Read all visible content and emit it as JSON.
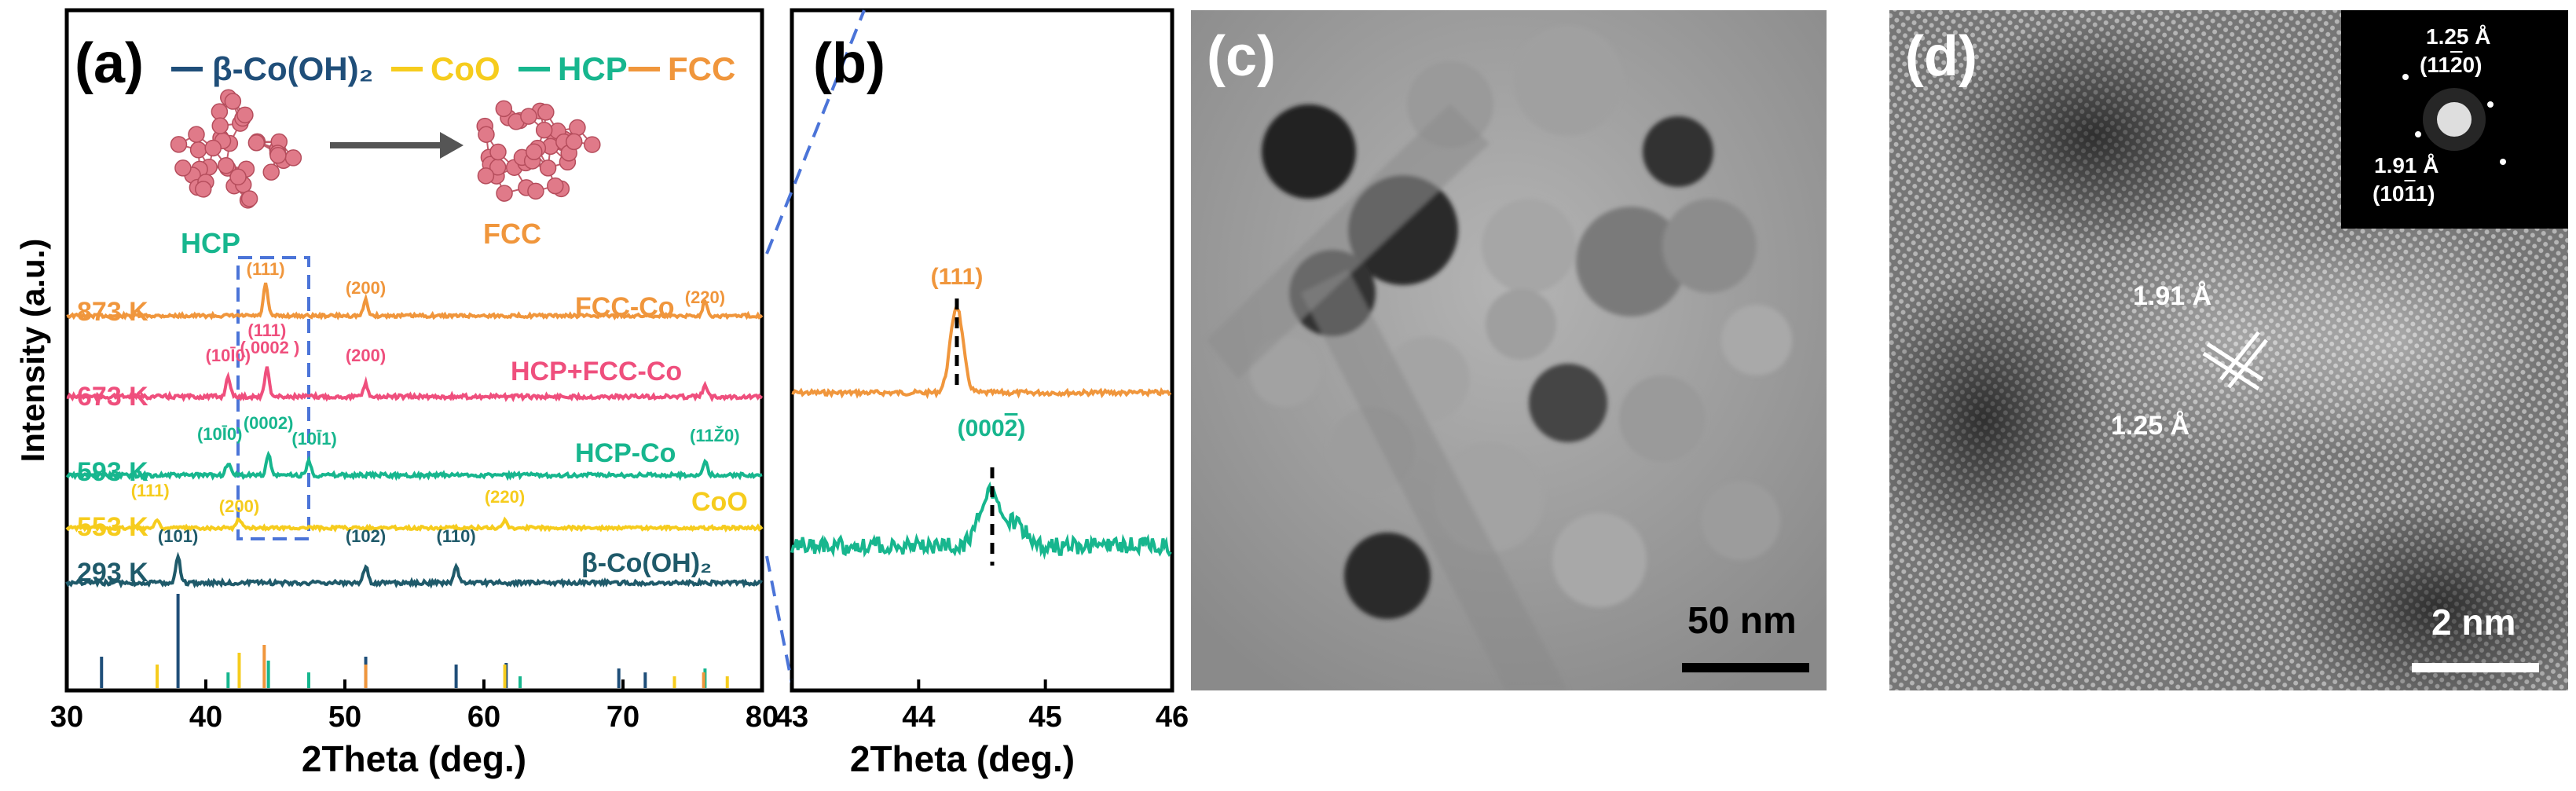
{
  "panel_a": {
    "label": "(a)",
    "legend": [
      "β-Co(OH)₂",
      "CoO",
      "HCP",
      "FCC"
    ],
    "schematic": {
      "left_label": "HCP",
      "right_label": "FCC"
    },
    "ylabel": "Intensity (a.u.)",
    "xlabel": "2Theta (deg.)",
    "xticks": [
      "30",
      "40",
      "50",
      "60",
      "70",
      "80"
    ],
    "traces": [
      {
        "temp": "873 K",
        "phase": "FCC-Co",
        "color": "#f0963c"
      },
      {
        "temp": "673 K",
        "phase": "HCP+FCC-Co",
        "color": "#ef4f7d"
      },
      {
        "temp": "593 K",
        "phase": "HCP-Co",
        "color": "#17b68e"
      },
      {
        "temp": "553 K",
        "phase": "CoO",
        "color": "#f6cc1d"
      },
      {
        "temp": "293 K",
        "phase": "β-Co(OH)₂",
        "color": "#1f5a6a"
      }
    ],
    "peak_labels": {
      "fcc_873": [
        "(111)",
        "(200)",
        "(220)"
      ],
      "t673": [
        "(10$\\bar{1}$0)",
        "(111)",
        "(0002)",
        "(200)"
      ],
      "hcp_593": [
        "(10$\\bar{1}$0)",
        "(000$\\bar{2}$)",
        "(10$\\bar{1}$1)",
        "(11$\\bar{2}$0)"
      ],
      "coo_553": [
        "(111)",
        "(200)",
        "(220)"
      ],
      "ohh_293": [
        "(101)",
        "(102)",
        "(110)"
      ]
    }
  },
  "panel_b": {
    "label": "(b)",
    "xlabel": "2Theta (deg.)",
    "xticks": [
      "43",
      "44",
      "45",
      "46"
    ],
    "peak_top": "(111)",
    "peak_bottom": "(000$\\bar{2}$)"
  },
  "panel_c": {
    "label": "(c)",
    "scale_bar": "50 nm"
  },
  "panel_d": {
    "label": "(d)",
    "scale_bar": "2 nm",
    "fft": {
      "d1": "1.25 Å",
      "hkl1": "(11$\\bar{2}$0)",
      "d2": "1.91 Å",
      "hkl2": "(10$\\bar{1}$1)"
    },
    "lattice_top": "1.91 Å",
    "lattice_bottom": "1.25 Å"
  },
  "chart_data": [
    {
      "type": "line",
      "panel": "(a)",
      "xlabel": "2Theta (deg.)",
      "ylabel": "Intensity (a.u.)",
      "xlim": [
        30,
        80
      ],
      "series": [
        {
          "name": "873 K",
          "peaks_2theta": [
            44.3,
            51.5,
            75.9
          ]
        },
        {
          "name": "673 K",
          "peaks_2theta": [
            41.6,
            44.4,
            51.5,
            75.9
          ]
        },
        {
          "name": "593 K",
          "peaks_2theta": [
            41.6,
            44.5,
            47.4,
            75.9
          ]
        },
        {
          "name": "553 K",
          "peaks_2theta": [
            36.5,
            42.4,
            61.5
          ]
        },
        {
          "name": "293 K",
          "peaks_2theta": [
            38.0,
            51.5,
            58.0
          ]
        }
      ],
      "reference_sticks": [
        {
          "name": "β-Co(OH)₂",
          "color": "#1f4e79",
          "x": [
            32.5,
            38.0,
            51.5,
            58.0,
            61.6,
            69.7,
            71.6
          ]
        },
        {
          "name": "CoO",
          "color": "#f6cc1d",
          "x": [
            36.5,
            42.4,
            61.5,
            73.7,
            77.5
          ]
        },
        {
          "name": "HCP",
          "color": "#17b68e",
          "x": [
            41.6,
            44.5,
            47.4,
            62.6,
            75.9
          ]
        },
        {
          "name": "FCC",
          "color": "#f0963c",
          "x": [
            44.2,
            51.5,
            75.8
          ]
        }
      ]
    },
    {
      "type": "line",
      "panel": "(b)",
      "xlabel": "2Theta (deg.)",
      "xlim": [
        43,
        46
      ],
      "series": [
        {
          "name": "673 K",
          "peak": 44.3,
          "label": "(111)"
        },
        {
          "name": "593 K",
          "peak": 44.55,
          "label": "(000$\\bar{2}$)"
        }
      ]
    }
  ]
}
